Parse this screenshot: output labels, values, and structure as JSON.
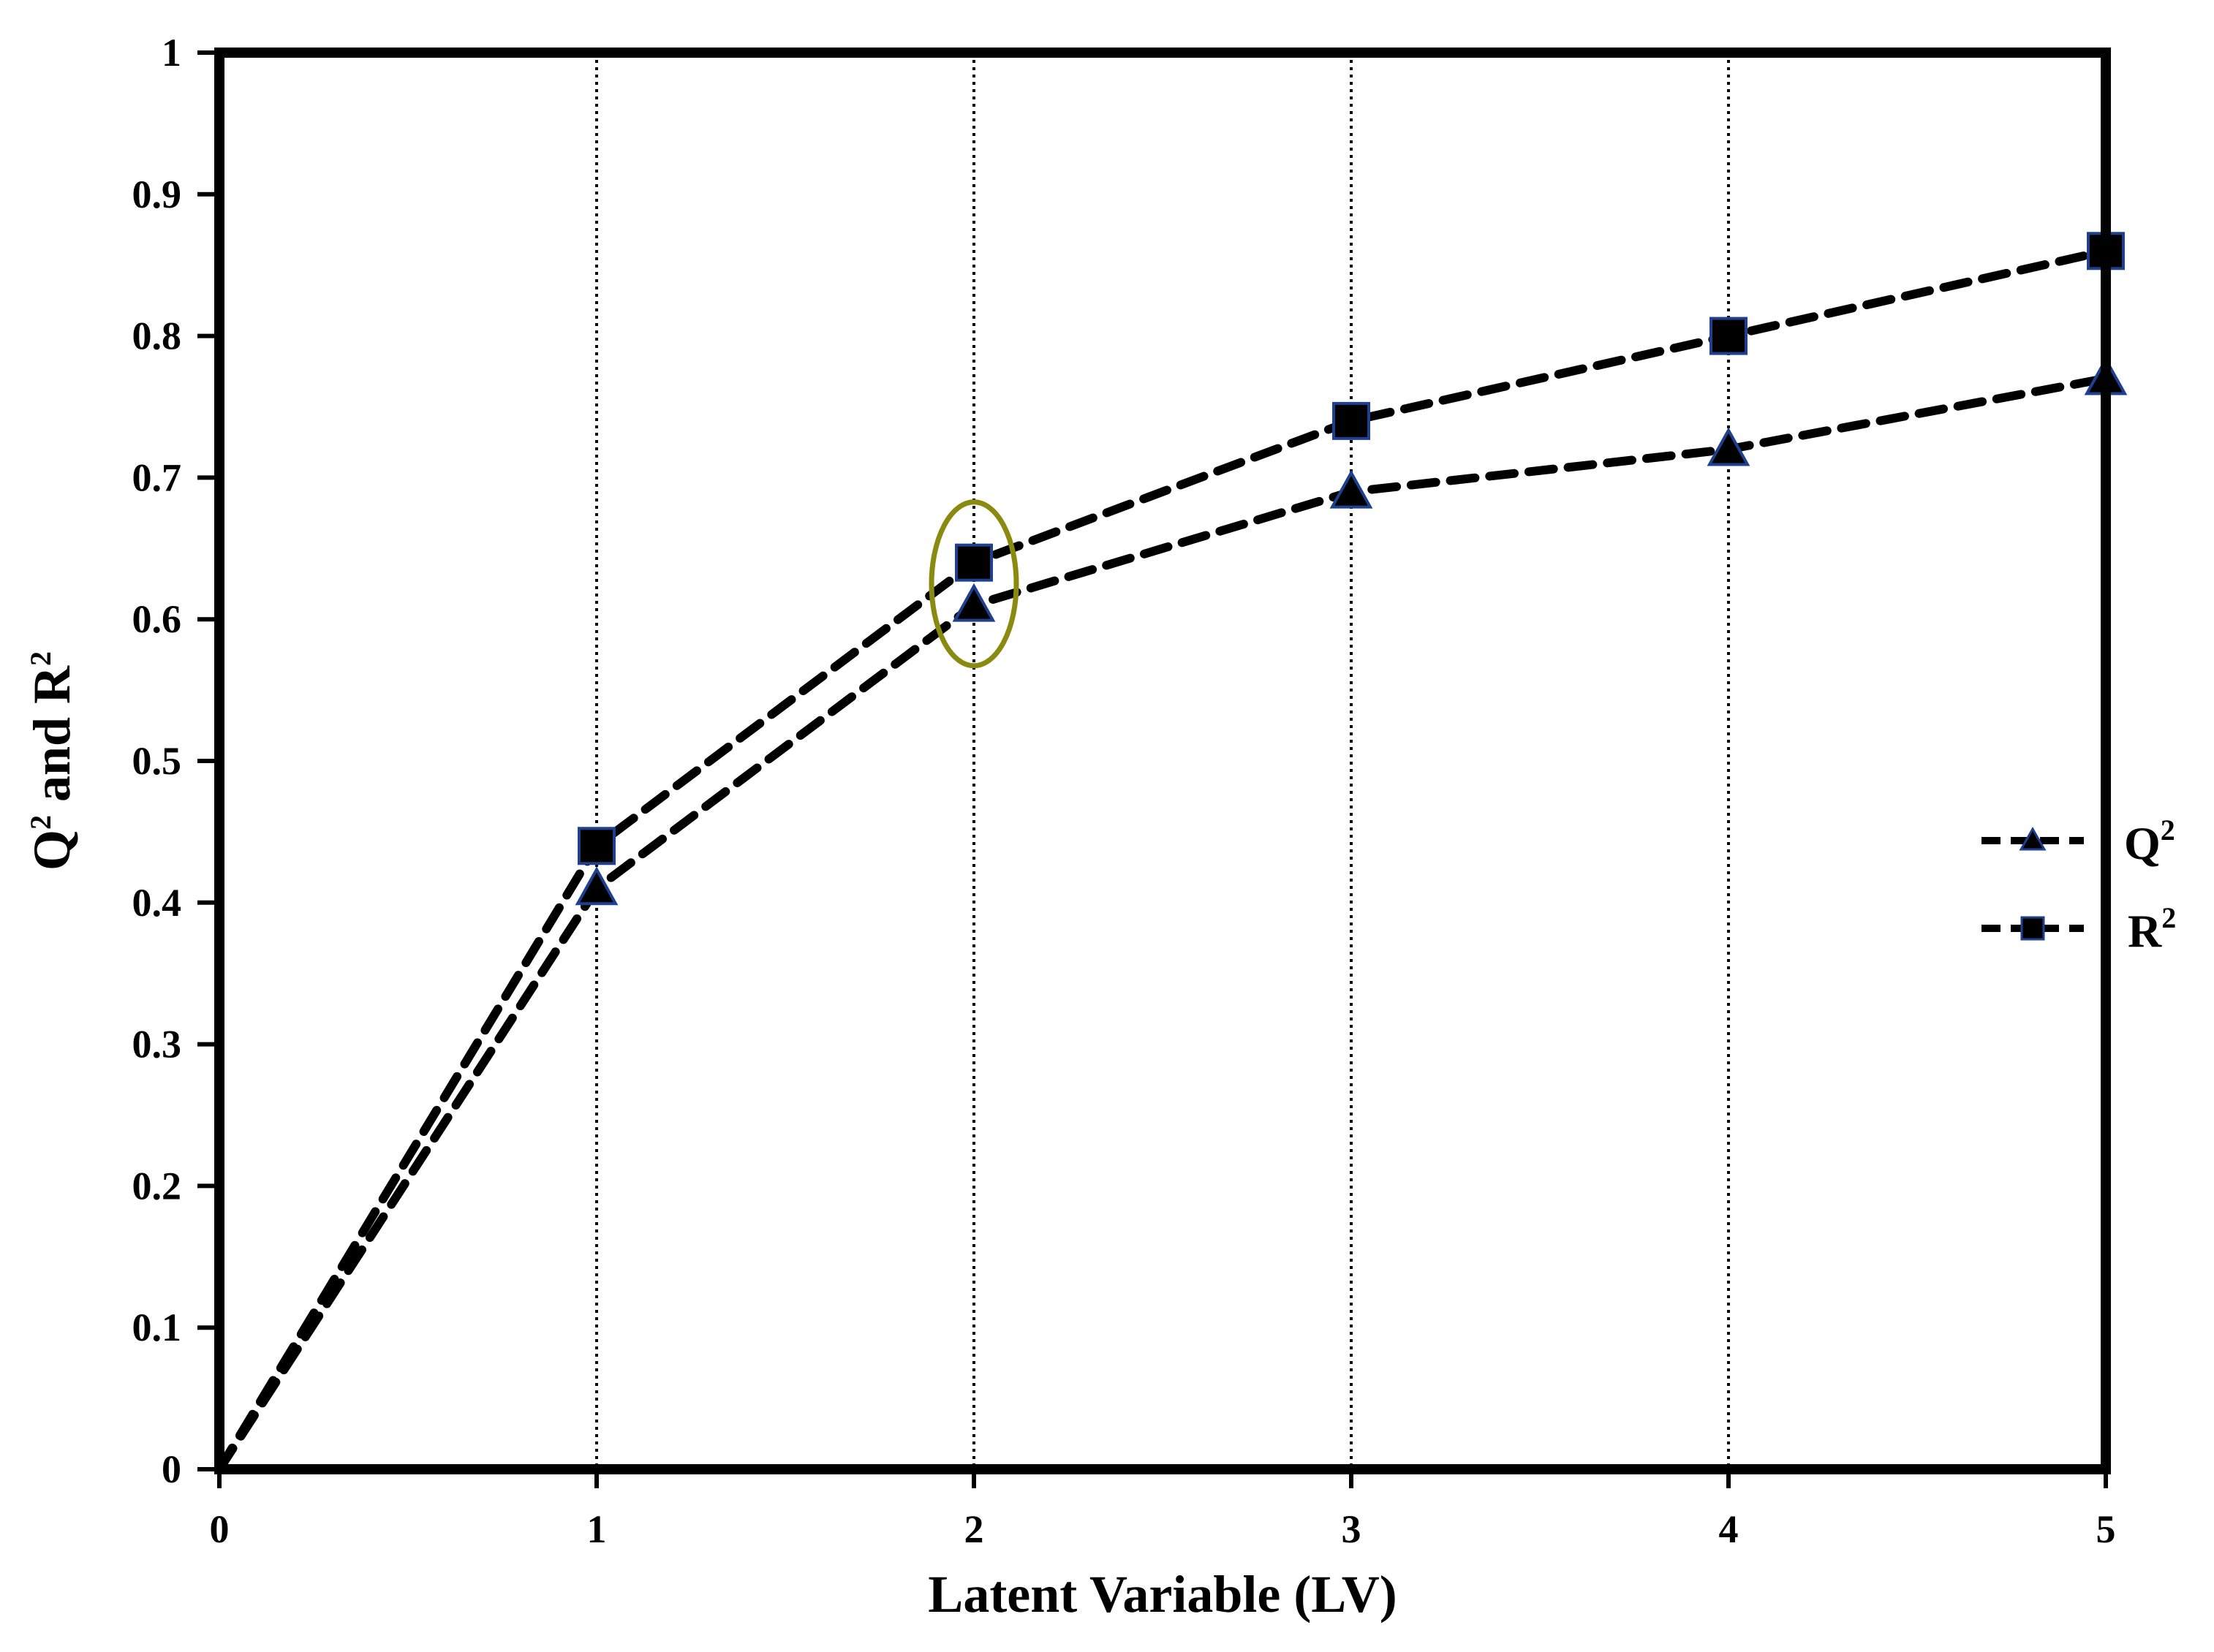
{
  "chart_data": {
    "type": "line",
    "xlabel": "Latent Variable (LV)",
    "ylabel_main": "Q",
    "ylabel_sup1": "2",
    "ylabel_mid": " and R",
    "ylabel_sup2": "2",
    "xlim": [
      0,
      5
    ],
    "ylim": [
      0,
      1
    ],
    "x_ticks": [
      0,
      1,
      2,
      3,
      4,
      5
    ],
    "x_tick_labels": [
      "0",
      "1",
      "2",
      "3",
      "4",
      "5"
    ],
    "y_ticks": [
      0,
      0.1,
      0.2,
      0.3,
      0.4,
      0.5,
      0.6,
      0.7,
      0.8,
      0.9,
      1
    ],
    "y_tick_labels": [
      "0",
      "0.1",
      "0.2",
      "0.3",
      "0.4",
      "0.5",
      "0.6",
      "0.7",
      "0.8",
      "0.9",
      "1"
    ],
    "vertical_gridlines_at": [
      1,
      2,
      3,
      4
    ],
    "legend_position": "right",
    "series": [
      {
        "name": "Q",
        "name_sup": "2",
        "marker": "triangle",
        "x": [
          0,
          1,
          2,
          3,
          4,
          5
        ],
        "y": [
          0,
          0.41,
          0.61,
          0.69,
          0.72,
          0.77
        ]
      },
      {
        "name": "R",
        "name_sup": "2",
        "marker": "square",
        "x": [
          0,
          1,
          2,
          3,
          4,
          5
        ],
        "y": [
          0,
          0.44,
          0.64,
          0.74,
          0.8,
          0.86
        ]
      }
    ],
    "highlight": {
      "x": 2,
      "y": 0.625
    },
    "colors": {
      "line": "#000000",
      "marker_fill": "#000000",
      "marker_stroke": "#1f3f8f",
      "highlight": "#8a8a10",
      "grid": "#000000"
    }
  }
}
